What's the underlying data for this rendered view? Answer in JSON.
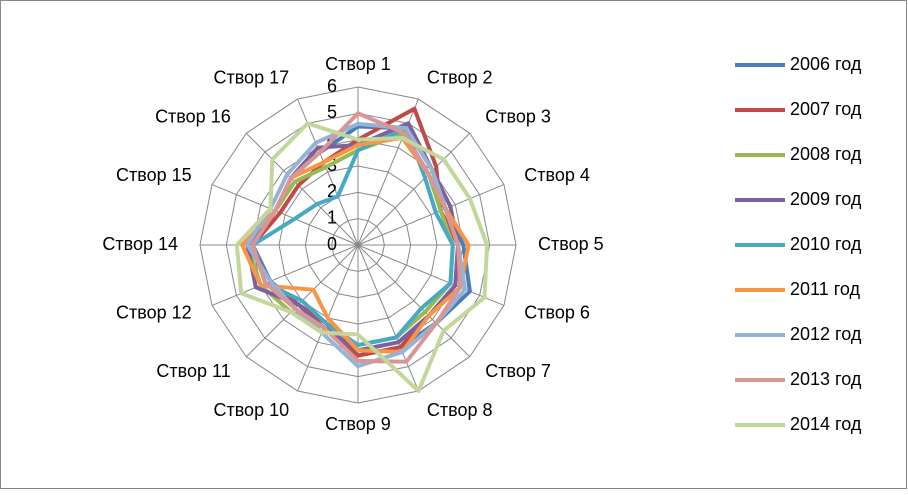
{
  "chart_data": {
    "type": "radar",
    "categories": [
      "Створ 1",
      "Створ 2",
      "Створ 3",
      "Створ 4",
      "Створ 5",
      "Створ 6",
      "Створ 7",
      "Створ 8",
      "Створ 9",
      "Створ 10",
      "Створ 11",
      "Створ 12",
      "Створ 14",
      "Створ 15",
      "Створ 16",
      "Створ 17"
    ],
    "ylim": [
      0,
      6
    ],
    "yticks": [
      0,
      1,
      2,
      3,
      4,
      5,
      6
    ],
    "grid": true,
    "legend": "right",
    "series": [
      {
        "name": "2006 год",
        "color": "#4a7ebb",
        "values": [
          4.5,
          4.8,
          4.0,
          3.6,
          4.0,
          4.6,
          4.2,
          4.2,
          4.2,
          3.4,
          3.2,
          3.6,
          4.0,
          3.4,
          3.6,
          3.8
        ]
      },
      {
        "name": "2007 год",
        "color": "#be4b48",
        "values": [
          4.0,
          5.6,
          4.2,
          3.4,
          3.8,
          4.0,
          3.8,
          4.2,
          4.2,
          3.2,
          3.2,
          3.8,
          4.0,
          3.2,
          3.2,
          3.4
        ]
      },
      {
        "name": "2008 год",
        "color": "#98b954",
        "values": [
          3.6,
          4.6,
          3.8,
          3.4,
          3.6,
          3.8,
          3.6,
          3.8,
          3.8,
          3.4,
          3.6,
          4.0,
          4.2,
          3.4,
          3.4,
          3.2
        ]
      },
      {
        "name": "2009 год",
        "color": "#7d60a0",
        "values": [
          3.8,
          5.0,
          4.0,
          3.8,
          3.8,
          4.0,
          3.8,
          4.0,
          4.0,
          3.4,
          3.2,
          4.2,
          4.2,
          3.4,
          3.6,
          4.0
        ]
      },
      {
        "name": "2010 год",
        "color": "#46aac5",
        "values": [
          3.6,
          4.8,
          3.6,
          3.2,
          3.6,
          3.8,
          3.4,
          3.8,
          3.8,
          3.2,
          3.0,
          3.8,
          4.0,
          2.6,
          2.2,
          2.0
        ]
      },
      {
        "name": "2011 год",
        "color": "#f79646",
        "values": [
          3.8,
          4.4,
          3.8,
          3.6,
          4.2,
          4.2,
          3.8,
          4.4,
          4.0,
          3.0,
          2.4,
          4.0,
          4.4,
          3.4,
          3.6,
          3.4
        ]
      },
      {
        "name": "2012 год",
        "color": "#95b3d7",
        "values": [
          4.6,
          4.8,
          4.0,
          3.6,
          3.8,
          4.4,
          4.2,
          4.4,
          4.6,
          3.6,
          3.4,
          3.6,
          4.2,
          3.6,
          3.8,
          4.2
        ]
      },
      {
        "name": "2013 год",
        "color": "#d99694",
        "values": [
          5.0,
          4.6,
          3.8,
          3.6,
          3.8,
          4.2,
          4.2,
          4.8,
          4.4,
          3.4,
          3.4,
          3.8,
          4.0,
          3.4,
          3.6,
          3.8
        ]
      },
      {
        "name": "2014 год",
        "color": "#c3d69b",
        "values": [
          4.0,
          4.4,
          4.6,
          4.6,
          4.9,
          5.2,
          4.6,
          6.0,
          3.4,
          3.6,
          3.6,
          4.8,
          4.6,
          3.6,
          4.6,
          5.0
        ]
      }
    ]
  }
}
